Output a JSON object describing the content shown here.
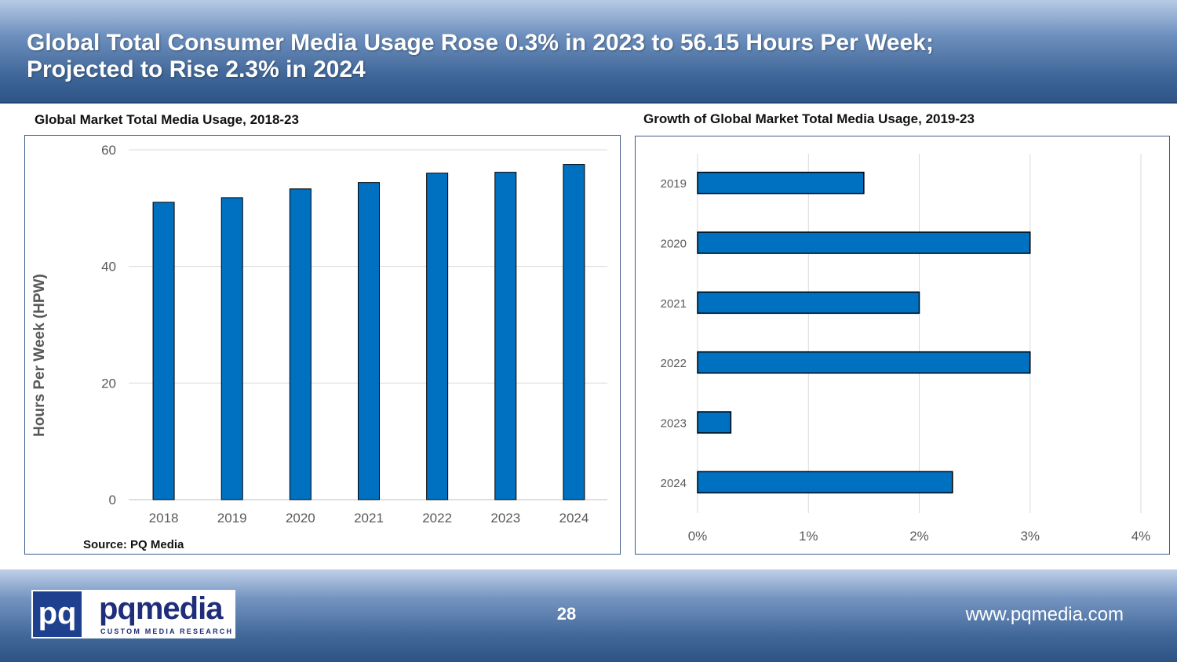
{
  "header": {
    "title_line1": "Global Total Consumer Media Usage Rose 0.3% in 2023 to 56.15 Hours Per Week;",
    "title_line2": "Projected to Rise 2.3% in 2024"
  },
  "chart_data": [
    {
      "type": "bar",
      "title": "Global Market Total Media Usage, 2018-23",
      "categories": [
        "2018",
        "2019",
        "2020",
        "2021",
        "2022",
        "2023",
        "2024"
      ],
      "values": [
        51.0,
        51.8,
        53.3,
        54.4,
        56.0,
        56.15,
        57.5
      ],
      "xlabel": "",
      "ylabel": "Hours Per Week (HPW)",
      "ylim": [
        0,
        60
      ],
      "yticks": [
        "0",
        "20",
        "40",
        "60"
      ],
      "grid": true,
      "source": "Source: PQ Media",
      "color": "#0070c0"
    },
    {
      "type": "bar",
      "orientation": "horizontal",
      "title": "Growth of Global Market Total Media Usage, 2019-23",
      "categories": [
        "2019",
        "2020",
        "2021",
        "2022",
        "2023",
        "2024"
      ],
      "values": [
        1.5,
        3.0,
        2.0,
        3.0,
        0.3,
        2.3
      ],
      "xlim": [
        0,
        4
      ],
      "xticks": [
        "0%",
        "1%",
        "2%",
        "3%",
        "4%"
      ],
      "grid": true,
      "color": "#0070c0"
    }
  ],
  "footer": {
    "logo_box": "pq",
    "logo_word": "pqmedia",
    "logo_sub": "CUSTOM MEDIA RESEARCH",
    "page_number": "28",
    "website": "www.pqmedia.com"
  }
}
